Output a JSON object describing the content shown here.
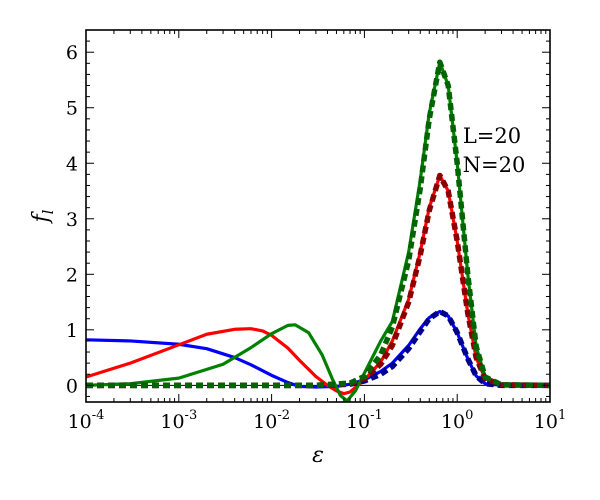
{
  "chart_data": {
    "type": "line",
    "xlabel": "ε",
    "ylabel": "f",
    "ylabel_subscript": "l",
    "x_scale": "log",
    "xlim": [
      0.0001,
      10
    ],
    "ylim": [
      -0.3,
      6.4
    ],
    "x_ticks": [
      {
        "value": 0.0001,
        "base": "10",
        "exp": "-4"
      },
      {
        "value": 0.001,
        "base": "10",
        "exp": "-3"
      },
      {
        "value": 0.01,
        "base": "10",
        "exp": "-2"
      },
      {
        "value": 0.1,
        "base": "10",
        "exp": "-1"
      },
      {
        "value": 1,
        "base": "10",
        "exp": "0"
      },
      {
        "value": 10,
        "base": "10",
        "exp": "1"
      }
    ],
    "y_ticks": [
      0,
      1,
      2,
      3,
      4,
      5,
      6
    ],
    "y_tick_labels": [
      "0",
      "1",
      "2",
      "3",
      "4",
      "5",
      "6"
    ],
    "annotations": [
      "L=20",
      "N=20"
    ],
    "grid": false,
    "series": [
      {
        "color": "#0000ff",
        "style": "solid",
        "points": [
          [
            0.0001,
            0.82
          ],
          [
            0.0003,
            0.8
          ],
          [
            0.001,
            0.74
          ],
          [
            0.002,
            0.66
          ],
          [
            0.004,
            0.5
          ],
          [
            0.006,
            0.37
          ],
          [
            0.01,
            0.18
          ],
          [
            0.015,
            0.05
          ],
          [
            0.02,
            -0.02
          ],
          [
            0.03,
            -0.03
          ],
          [
            0.05,
            -0.02
          ],
          [
            0.07,
            0.02
          ],
          [
            0.1,
            0.1
          ],
          [
            0.15,
            0.25
          ],
          [
            0.2,
            0.4
          ],
          [
            0.3,
            0.72
          ],
          [
            0.4,
            1.02
          ],
          [
            0.5,
            1.22
          ],
          [
            0.65,
            1.33
          ],
          [
            0.8,
            1.25
          ],
          [
            1.0,
            0.95
          ],
          [
            1.3,
            0.48
          ],
          [
            1.6,
            0.17
          ],
          [
            2.0,
            0.03
          ],
          [
            3.0,
            0.0
          ],
          [
            10,
            0.0
          ]
        ]
      },
      {
        "color": "#ff0000",
        "style": "solid",
        "points": [
          [
            0.0001,
            0.15
          ],
          [
            0.0003,
            0.4
          ],
          [
            0.001,
            0.73
          ],
          [
            0.002,
            0.92
          ],
          [
            0.004,
            1.01
          ],
          [
            0.006,
            1.02
          ],
          [
            0.008,
            0.98
          ],
          [
            0.01,
            0.9
          ],
          [
            0.015,
            0.67
          ],
          [
            0.02,
            0.45
          ],
          [
            0.03,
            0.16
          ],
          [
            0.04,
            0.0
          ],
          [
            0.05,
            -0.1
          ],
          [
            0.06,
            -0.15
          ],
          [
            0.07,
            -0.12
          ],
          [
            0.1,
            0.1
          ],
          [
            0.15,
            0.42
          ],
          [
            0.2,
            0.8
          ],
          [
            0.3,
            1.55
          ],
          [
            0.4,
            2.4
          ],
          [
            0.5,
            3.2
          ],
          [
            0.65,
            3.78
          ],
          [
            0.8,
            3.5
          ],
          [
            1.0,
            2.6
          ],
          [
            1.3,
            1.3
          ],
          [
            1.6,
            0.5
          ],
          [
            2.0,
            0.12
          ],
          [
            3.0,
            0.01
          ],
          [
            10,
            0.0
          ]
        ]
      },
      {
        "color": "#008000",
        "style": "solid",
        "points": [
          [
            0.0001,
            0.0
          ],
          [
            0.0003,
            0.03
          ],
          [
            0.001,
            0.13
          ],
          [
            0.003,
            0.38
          ],
          [
            0.006,
            0.68
          ],
          [
            0.01,
            0.93
          ],
          [
            0.015,
            1.08
          ],
          [
            0.018,
            1.09
          ],
          [
            0.025,
            0.95
          ],
          [
            0.035,
            0.55
          ],
          [
            0.045,
            0.12
          ],
          [
            0.055,
            -0.18
          ],
          [
            0.065,
            -0.28
          ],
          [
            0.08,
            -0.1
          ],
          [
            0.1,
            0.22
          ],
          [
            0.15,
            0.8
          ],
          [
            0.2,
            1.15
          ],
          [
            0.3,
            2.4
          ],
          [
            0.4,
            3.7
          ],
          [
            0.5,
            4.9
          ],
          [
            0.65,
            5.82
          ],
          [
            0.8,
            5.4
          ],
          [
            1.0,
            4.0
          ],
          [
            1.3,
            2.0
          ],
          [
            1.6,
            0.7
          ],
          [
            2.0,
            0.15
          ],
          [
            3.0,
            0.01
          ],
          [
            10,
            0.0
          ]
        ]
      },
      {
        "color": "#00008b",
        "style": "dashed",
        "points": [
          [
            0.0001,
            0.0
          ],
          [
            0.03,
            0.0
          ],
          [
            0.07,
            0.02
          ],
          [
            0.1,
            0.08
          ],
          [
            0.15,
            0.2
          ],
          [
            0.2,
            0.34
          ],
          [
            0.3,
            0.66
          ],
          [
            0.4,
            0.97
          ],
          [
            0.5,
            1.2
          ],
          [
            0.65,
            1.33
          ],
          [
            0.8,
            1.25
          ],
          [
            1.0,
            0.95
          ],
          [
            1.3,
            0.48
          ],
          [
            1.6,
            0.17
          ],
          [
            2.0,
            0.03
          ],
          [
            3.0,
            0.0
          ],
          [
            10,
            0.0
          ]
        ]
      },
      {
        "color": "#8b0000",
        "style": "dashed",
        "points": [
          [
            0.0001,
            0.0
          ],
          [
            0.03,
            0.0
          ],
          [
            0.07,
            0.03
          ],
          [
            0.1,
            0.12
          ],
          [
            0.15,
            0.38
          ],
          [
            0.2,
            0.72
          ],
          [
            0.3,
            1.5
          ],
          [
            0.4,
            2.35
          ],
          [
            0.5,
            3.15
          ],
          [
            0.65,
            3.78
          ],
          [
            0.8,
            3.5
          ],
          [
            1.0,
            2.6
          ],
          [
            1.3,
            1.3
          ],
          [
            1.6,
            0.5
          ],
          [
            2.0,
            0.12
          ],
          [
            3.0,
            0.01
          ],
          [
            10,
            0.0
          ]
        ]
      },
      {
        "color": "#006400",
        "style": "dashed",
        "points": [
          [
            0.0001,
            0.0
          ],
          [
            0.03,
            0.0
          ],
          [
            0.07,
            0.04
          ],
          [
            0.1,
            0.16
          ],
          [
            0.15,
            0.55
          ],
          [
            0.2,
            1.05
          ],
          [
            0.3,
            2.25
          ],
          [
            0.4,
            3.55
          ],
          [
            0.5,
            4.8
          ],
          [
            0.65,
            5.82
          ],
          [
            0.8,
            5.4
          ],
          [
            1.0,
            4.0
          ],
          [
            1.3,
            2.0
          ],
          [
            1.6,
            0.7
          ],
          [
            2.0,
            0.15
          ],
          [
            3.0,
            0.01
          ],
          [
            10,
            0.0
          ]
        ]
      }
    ]
  }
}
